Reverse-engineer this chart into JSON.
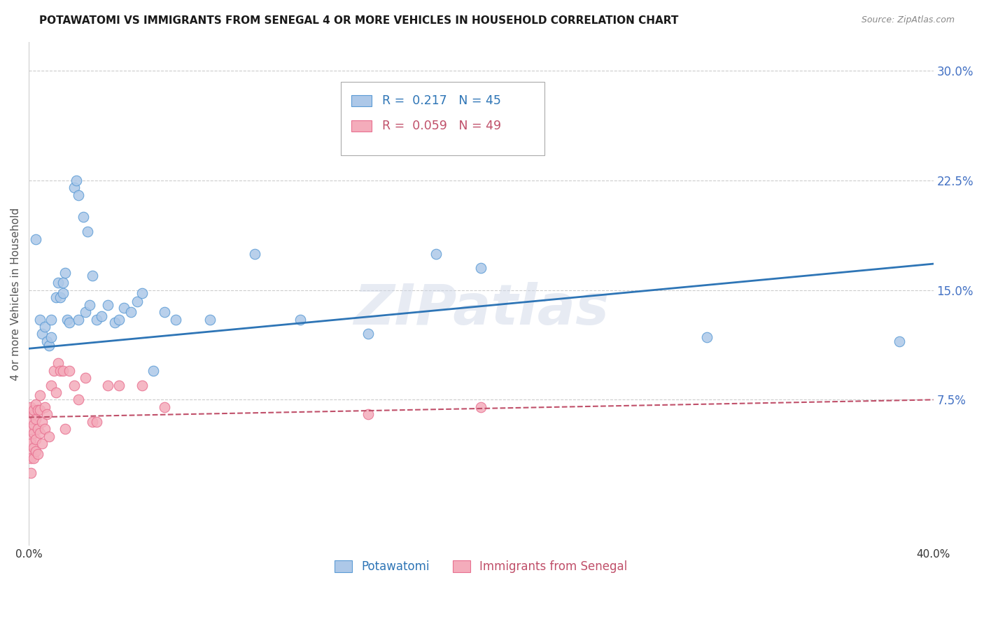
{
  "title": "POTAWATOMI VS IMMIGRANTS FROM SENEGAL 4 OR MORE VEHICLES IN HOUSEHOLD CORRELATION CHART",
  "source": "Source: ZipAtlas.com",
  "ylabel": "4 or more Vehicles in Household",
  "xlabel": "",
  "xlim": [
    0.0,
    0.4
  ],
  "ylim": [
    -0.025,
    0.32
  ],
  "xticks": [
    0.0,
    0.1,
    0.2,
    0.3,
    0.4
  ],
  "yticks_right": [
    0.075,
    0.15,
    0.225,
    0.3
  ],
  "ytick_labels_right": [
    "7.5%",
    "15.0%",
    "22.5%",
    "30.0%"
  ],
  "xtick_labels": [
    "0.0%",
    "",
    "",
    "",
    "40.0%"
  ],
  "blue_R": 0.217,
  "blue_N": 45,
  "pink_R": 0.059,
  "pink_N": 49,
  "blue_color": "#adc8e8",
  "blue_edge_color": "#5b9bd5",
  "blue_line_color": "#2e75b6",
  "pink_color": "#f4acbb",
  "pink_edge_color": "#e87090",
  "pink_line_color": "#c0506a",
  "watermark": "ZIPatlas",
  "legend_label_blue": "Potawatomi",
  "legend_label_pink": "Immigrants from Senegal",
  "blue_points_x": [
    0.003,
    0.005,
    0.006,
    0.007,
    0.008,
    0.009,
    0.01,
    0.01,
    0.012,
    0.013,
    0.014,
    0.015,
    0.015,
    0.016,
    0.017,
    0.018,
    0.02,
    0.021,
    0.022,
    0.022,
    0.024,
    0.025,
    0.026,
    0.027,
    0.028,
    0.03,
    0.032,
    0.035,
    0.038,
    0.04,
    0.042,
    0.045,
    0.048,
    0.05,
    0.055,
    0.06,
    0.065,
    0.08,
    0.1,
    0.12,
    0.15,
    0.18,
    0.2,
    0.3,
    0.385
  ],
  "blue_points_y": [
    0.185,
    0.13,
    0.12,
    0.125,
    0.115,
    0.112,
    0.118,
    0.13,
    0.145,
    0.155,
    0.145,
    0.148,
    0.155,
    0.162,
    0.13,
    0.128,
    0.22,
    0.225,
    0.215,
    0.13,
    0.2,
    0.135,
    0.19,
    0.14,
    0.16,
    0.13,
    0.132,
    0.14,
    0.128,
    0.13,
    0.138,
    0.135,
    0.142,
    0.148,
    0.095,
    0.135,
    0.13,
    0.13,
    0.175,
    0.13,
    0.12,
    0.175,
    0.165,
    0.118,
    0.115
  ],
  "pink_points_x": [
    0.001,
    0.001,
    0.001,
    0.001,
    0.001,
    0.001,
    0.001,
    0.001,
    0.002,
    0.002,
    0.002,
    0.002,
    0.002,
    0.002,
    0.003,
    0.003,
    0.003,
    0.003,
    0.004,
    0.004,
    0.004,
    0.005,
    0.005,
    0.005,
    0.006,
    0.006,
    0.007,
    0.007,
    0.008,
    0.009,
    0.01,
    0.011,
    0.012,
    0.013,
    0.014,
    0.015,
    0.016,
    0.018,
    0.02,
    0.022,
    0.025,
    0.028,
    0.03,
    0.035,
    0.04,
    0.05,
    0.06,
    0.15,
    0.2
  ],
  "pink_points_y": [
    0.055,
    0.048,
    0.062,
    0.038,
    0.07,
    0.045,
    0.035,
    0.025,
    0.052,
    0.065,
    0.042,
    0.058,
    0.035,
    0.068,
    0.048,
    0.062,
    0.072,
    0.04,
    0.055,
    0.068,
    0.038,
    0.052,
    0.068,
    0.078,
    0.06,
    0.045,
    0.07,
    0.055,
    0.065,
    0.05,
    0.085,
    0.095,
    0.08,
    0.1,
    0.095,
    0.095,
    0.055,
    0.095,
    0.085,
    0.075,
    0.09,
    0.06,
    0.06,
    0.085,
    0.085,
    0.085,
    0.07,
    0.065,
    0.07
  ],
  "blue_trendline_x": [
    0.0,
    0.4
  ],
  "blue_trendline_y": [
    0.11,
    0.168
  ],
  "pink_trendline_x": [
    0.0,
    0.4
  ],
  "pink_trendline_y": [
    0.063,
    0.075
  ]
}
